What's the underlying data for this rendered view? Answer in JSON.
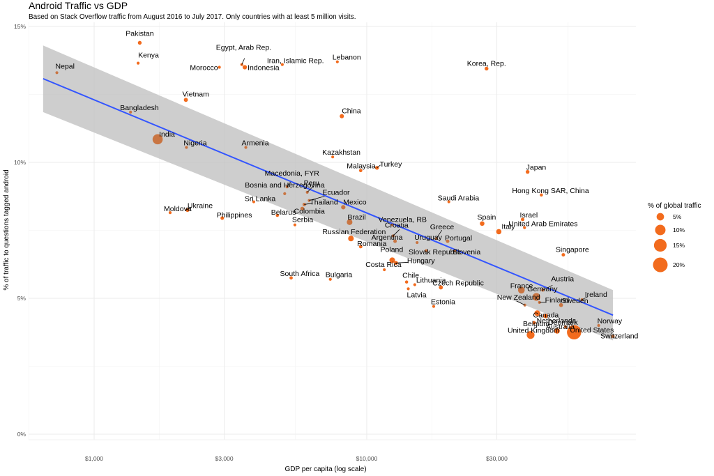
{
  "chart_data": {
    "type": "scatter",
    "title": "Android Traffic vs GDP",
    "subtitle": "Based on Stack Overflow traffic from August 2016 to July 2017. Only countries with at least 5 million visits.",
    "xlabel": "GDP per capita (log scale)",
    "ylabel": "% of traffic to questions tagged android",
    "x_scale": "log",
    "xlim": [
      480,
      92000
    ],
    "ylim": [
      -0.2,
      15.1
    ],
    "x_ticks": [
      1000,
      3000,
      10000,
      30000
    ],
    "x_tick_labels": [
      "$1,000",
      "$3,000",
      "$10,000",
      "$30,000"
    ],
    "y_ticks": [
      0,
      5,
      10,
      15
    ],
    "y_tick_labels": [
      "0%",
      "5%",
      "10%",
      "15%"
    ],
    "grid": true,
    "point_color": "#f26b1d",
    "trend": {
      "type": "linear fit on log10(GDP) with confidence band",
      "color": "#3355ff",
      "band_color": "#bdbdbd",
      "x_range": [
        650,
        80000
      ],
      "y_start": 13.08,
      "y_end": 4.38,
      "band_start": [
        11.85,
        14.3
      ],
      "band_end": [
        3.45,
        5.3
      ]
    },
    "legend": {
      "title": "% of global traffic",
      "position": "right",
      "sizes": [
        5,
        10,
        15,
        20
      ],
      "labels": [
        "5%",
        "10%",
        "15%",
        "20%"
      ]
    },
    "points": [
      {
        "country": "Pakistan",
        "gdp": 1470,
        "android": 14.4,
        "traffic": 1.2
      },
      {
        "country": "Kenya",
        "gdp": 1450,
        "android": 13.65,
        "traffic": 0.3
      },
      {
        "country": "Nepal",
        "gdp": 730,
        "android": 13.3,
        "traffic": 0.3
      },
      {
        "country": "Egypt, Arab Rep.",
        "gdp": 3480,
        "android": 13.6,
        "traffic": 0.5
      },
      {
        "country": "Morocco",
        "gdp": 2880,
        "android": 13.5,
        "traffic": 0.4
      },
      {
        "country": "Indonesia",
        "gdp": 3570,
        "android": 13.5,
        "traffic": 1.6
      },
      {
        "country": "Iran, Islamic Rep.",
        "gdp": 4900,
        "android": 13.6,
        "traffic": 0.4
      },
      {
        "country": "Lebanon",
        "gdp": 7800,
        "android": 13.7,
        "traffic": 0.3
      },
      {
        "country": "Korea, Rep.",
        "gdp": 27500,
        "android": 13.45,
        "traffic": 1.2
      },
      {
        "country": "Vietnam",
        "gdp": 2170,
        "android": 12.3,
        "traffic": 1.4
      },
      {
        "country": "Bangladesh",
        "gdp": 1360,
        "android": 11.85,
        "traffic": 0.3
      },
      {
        "country": "China",
        "gdp": 8100,
        "android": 11.7,
        "traffic": 1.5
      },
      {
        "country": "India",
        "gdp": 1710,
        "android": 10.85,
        "traffic": 9.5
      },
      {
        "country": "Nigeria",
        "gdp": 2180,
        "android": 10.55,
        "traffic": 0.3
      },
      {
        "country": "Armenia",
        "gdp": 3600,
        "android": 10.55,
        "traffic": 0.25
      },
      {
        "country": "Kazakhstan",
        "gdp": 7500,
        "android": 10.2,
        "traffic": 0.25
      },
      {
        "country": "Malaysia",
        "gdp": 9500,
        "android": 9.7,
        "traffic": 0.9
      },
      {
        "country": "Turkey",
        "gdp": 10900,
        "android": 9.8,
        "traffic": 1.2
      },
      {
        "country": "Japan",
        "gdp": 38900,
        "android": 9.65,
        "traffic": 1.2
      },
      {
        "country": "Macedonia, FYR",
        "gdp": 5100,
        "android": 9.1,
        "traffic": 0.25
      },
      {
        "country": "Peru",
        "gdp": 6050,
        "android": 8.9,
        "traffic": 0.3
      },
      {
        "country": "Bosnia and Herzegovina",
        "gdp": 5000,
        "android": 8.85,
        "traffic": 0.25
      },
      {
        "country": "Hong Kong SAR, China",
        "gdp": 43700,
        "android": 8.8,
        "traffic": 0.8
      },
      {
        "country": "Sri Lanka",
        "gdp": 3850,
        "android": 8.55,
        "traffic": 0.4
      },
      {
        "country": "Ecuador",
        "gdp": 6150,
        "android": 8.6,
        "traffic": 0.4
      },
      {
        "country": "Thailand",
        "gdp": 5900,
        "android": 8.45,
        "traffic": 1.0
      },
      {
        "country": "Saudi Arabia",
        "gdp": 20000,
        "android": 8.55,
        "traffic": 0.4
      },
      {
        "country": "Mexico",
        "gdp": 8200,
        "android": 8.35,
        "traffic": 1.6
      },
      {
        "country": "Ukraine",
        "gdp": 2200,
        "android": 8.25,
        "traffic": 1.3
      },
      {
        "country": "Moldova",
        "gdp": 1900,
        "android": 8.15,
        "traffic": 0.25
      },
      {
        "country": "Colombia",
        "gdp": 5800,
        "android": 8.3,
        "traffic": 1.2
      },
      {
        "country": "Belarus",
        "gdp": 4700,
        "android": 8.05,
        "traffic": 0.8
      },
      {
        "country": "Philippines",
        "gdp": 2950,
        "android": 7.95,
        "traffic": 1.0
      },
      {
        "country": "Brazil",
        "gdp": 8650,
        "android": 7.8,
        "traffic": 2.8
      },
      {
        "country": "Venezuela, RB",
        "gdp": 12400,
        "android": 7.7,
        "traffic": 0.3
      },
      {
        "country": "Spain",
        "gdp": 26500,
        "android": 7.75,
        "traffic": 1.8
      },
      {
        "country": "Israel",
        "gdp": 37300,
        "android": 7.9,
        "traffic": 1.0
      },
      {
        "country": "Serbia",
        "gdp": 5450,
        "android": 7.7,
        "traffic": 0.6
      },
      {
        "country": "Croatia",
        "gdp": 12500,
        "android": 7.3,
        "traffic": 0.3
      },
      {
        "country": "United Arab Emirates",
        "gdp": 37900,
        "android": 7.6,
        "traffic": 0.5
      },
      {
        "country": "Italy",
        "gdp": 30500,
        "android": 7.45,
        "traffic": 2.4
      },
      {
        "country": "Greece",
        "gdp": 18000,
        "android": 7.2,
        "traffic": 0.5
      },
      {
        "country": "Portugal",
        "gdp": 19800,
        "android": 7.1,
        "traffic": 1.0
      },
      {
        "country": "Russian Federation",
        "gdp": 8750,
        "android": 7.2,
        "traffic": 2.8
      },
      {
        "country": "Argentina",
        "gdp": 12700,
        "android": 7.1,
        "traffic": 1.0
      },
      {
        "country": "Uruguay",
        "gdp": 15300,
        "android": 7.05,
        "traffic": 0.25
      },
      {
        "country": "Romania",
        "gdp": 9500,
        "android": 6.9,
        "traffic": 1.0
      },
      {
        "country": "Slovak Republic",
        "gdp": 16500,
        "android": 6.75,
        "traffic": 0.25
      },
      {
        "country": "Slovenia",
        "gdp": 21000,
        "android": 6.75,
        "traffic": 0.25
      },
      {
        "country": "Singapore",
        "gdp": 52600,
        "android": 6.6,
        "traffic": 1.0
      },
      {
        "country": "Poland",
        "gdp": 12400,
        "android": 6.4,
        "traffic": 2.8
      },
      {
        "country": "Hungary",
        "gdp": 12800,
        "android": 6.3,
        "traffic": 1.3
      },
      {
        "country": "Costa Rica",
        "gdp": 11600,
        "android": 6.05,
        "traffic": 0.4
      },
      {
        "country": "South Africa",
        "gdp": 5280,
        "android": 5.75,
        "traffic": 0.9
      },
      {
        "country": "Bulgaria",
        "gdp": 7350,
        "android": 5.7,
        "traffic": 0.7
      },
      {
        "country": "Chile",
        "gdp": 14000,
        "android": 5.6,
        "traffic": 0.8
      },
      {
        "country": "Lithuania",
        "gdp": 15000,
        "android": 5.5,
        "traffic": 0.5
      },
      {
        "country": "Latvia",
        "gdp": 14200,
        "android": 5.35,
        "traffic": 0.3
      },
      {
        "country": "Czech Republic",
        "gdp": 18700,
        "android": 5.4,
        "traffic": 1.4
      },
      {
        "country": "Estonia",
        "gdp": 17600,
        "android": 4.7,
        "traffic": 0.4
      },
      {
        "country": "Austria",
        "gdp": 44200,
        "android": 5.3,
        "traffic": 0.8
      },
      {
        "country": "France",
        "gdp": 36900,
        "android": 5.3,
        "traffic": 4.0
      },
      {
        "country": "Germany",
        "gdp": 41900,
        "android": 5.05,
        "traffic": 5.5
      },
      {
        "country": "Finland",
        "gdp": 43000,
        "android": 4.85,
        "traffic": 0.6
      },
      {
        "country": "New Zealand",
        "gdp": 38000,
        "android": 4.75,
        "traffic": 0.5
      },
      {
        "country": "Sweden",
        "gdp": 51600,
        "android": 4.75,
        "traffic": 1.3
      },
      {
        "country": "Ireland",
        "gdp": 61600,
        "android": 4.95,
        "traffic": 0.3
      },
      {
        "country": "Canada",
        "gdp": 42200,
        "android": 4.45,
        "traffic": 3.0
      },
      {
        "country": "Netherlands",
        "gdp": 45300,
        "android": 4.35,
        "traffic": 1.8
      },
      {
        "country": "Belgium",
        "gdp": 41100,
        "android": 4.1,
        "traffic": 1.0
      },
      {
        "country": "Norway",
        "gdp": 70900,
        "android": 4.0,
        "traffic": 0.6
      },
      {
        "country": "Denmark",
        "gdp": 53600,
        "android": 3.95,
        "traffic": 0.7
      },
      {
        "country": "United Kingdom",
        "gdp": 39900,
        "android": 3.65,
        "traffic": 5.5
      },
      {
        "country": "Australia",
        "gdp": 49900,
        "android": 3.8,
        "traffic": 2.6
      },
      {
        "country": "United States",
        "gdp": 57600,
        "android": 3.75,
        "traffic": 19.0
      },
      {
        "country": "Switzerland",
        "gdp": 80000,
        "android": 3.6,
        "traffic": 1.0
      }
    ]
  }
}
